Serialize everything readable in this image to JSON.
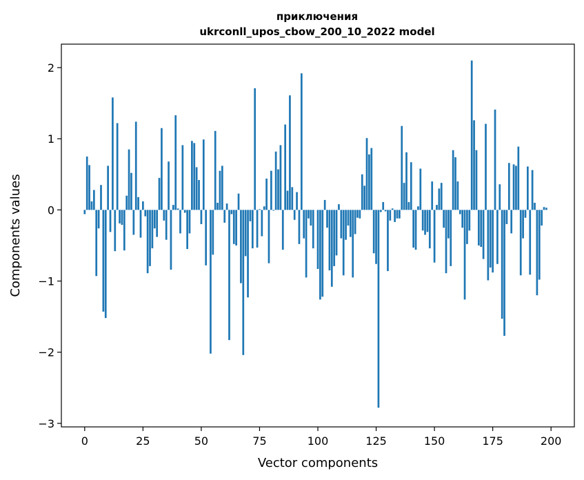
{
  "chart_data": {
    "type": "bar",
    "title_line1": "приключения",
    "title_line2": "ukrconll_upos_cbow_200_10_2022 model",
    "xlabel": "Vector components",
    "ylabel": "Components values",
    "xlim": [
      -10,
      210
    ],
    "ylim": [
      -3.05,
      2.33
    ],
    "xticks": [
      0,
      25,
      50,
      75,
      100,
      125,
      150,
      175,
      200
    ],
    "yticks": [
      -3,
      -2,
      -1,
      0,
      1,
      2
    ],
    "ytick_labels": [
      "−3",
      "−2",
      "−1",
      "0",
      "1",
      "2"
    ],
    "bar_color": "#1f77b4",
    "values": [
      -0.06,
      0.75,
      0.63,
      0.12,
      0.28,
      -0.93,
      -0.26,
      0.35,
      -1.43,
      -1.52,
      0.62,
      -0.31,
      1.58,
      -0.58,
      1.22,
      -0.19,
      -0.21,
      -0.57,
      0.2,
      0.85,
      0.52,
      -0.35,
      1.24,
      0.18,
      -0.39,
      0.12,
      -0.09,
      -0.89,
      -0.79,
      -0.54,
      -0.26,
      -0.38,
      0.45,
      1.15,
      -0.15,
      -0.42,
      0.68,
      -0.84,
      0.07,
      1.33,
      0.02,
      -0.33,
      0.91,
      -0.04,
      -0.55,
      -0.33,
      0.97,
      0.94,
      0.6,
      0.42,
      -0.2,
      0.99,
      -0.78,
      0.0,
      -2.02,
      -0.63,
      1.11,
      0.1,
      0.55,
      0.62,
      -0.18,
      0.09,
      -1.83,
      -0.06,
      -0.48,
      -0.5,
      0.23,
      -1.03,
      -2.04,
      -0.65,
      -1.23,
      -0.16,
      -0.54,
      1.71,
      -0.53,
      0.01,
      -0.37,
      0.05,
      0.44,
      -0.75,
      0.55,
      -0.01,
      0.82,
      0.57,
      0.91,
      -0.56,
      1.2,
      0.27,
      1.61,
      0.32,
      -0.14,
      0.25,
      -0.48,
      1.92,
      -0.4,
      -0.95,
      -0.12,
      -0.22,
      -0.54,
      0.0,
      -0.83,
      -1.26,
      -1.22,
      0.14,
      -0.25,
      -0.85,
      -1.08,
      -0.79,
      -0.64,
      0.08,
      -0.4,
      -0.92,
      -0.42,
      -0.22,
      -0.38,
      -0.95,
      -0.34,
      -0.11,
      -0.12,
      0.5,
      0.34,
      1.01,
      0.78,
      0.87,
      -0.61,
      -0.76,
      -2.78,
      -0.03,
      0.11,
      -0.02,
      -0.86,
      -0.15,
      0.02,
      -0.17,
      -0.12,
      -0.12,
      1.18,
      0.38,
      0.81,
      0.11,
      0.67,
      -0.53,
      -0.56,
      0.05,
      0.58,
      -0.29,
      -0.35,
      -0.31,
      -0.54,
      0.4,
      -0.74,
      0.07,
      0.3,
      0.38,
      -0.25,
      -0.89,
      -0.4,
      -0.79,
      0.84,
      0.74,
      0.4,
      -0.06,
      -0.25,
      -1.26,
      -0.48,
      -0.29,
      2.1,
      1.26,
      0.84,
      -0.5,
      -0.52,
      -0.69,
      1.21,
      -0.99,
      -0.81,
      -0.88,
      1.41,
      -0.76,
      0.36,
      -1.53,
      -1.77,
      -0.2,
      0.66,
      -0.33,
      0.64,
      0.62,
      0.89,
      -0.92,
      -0.4,
      -0.11,
      0.61,
      -0.91,
      0.56,
      0.1,
      -1.2,
      -0.98,
      -0.22,
      0.04,
      0.03
    ]
  }
}
